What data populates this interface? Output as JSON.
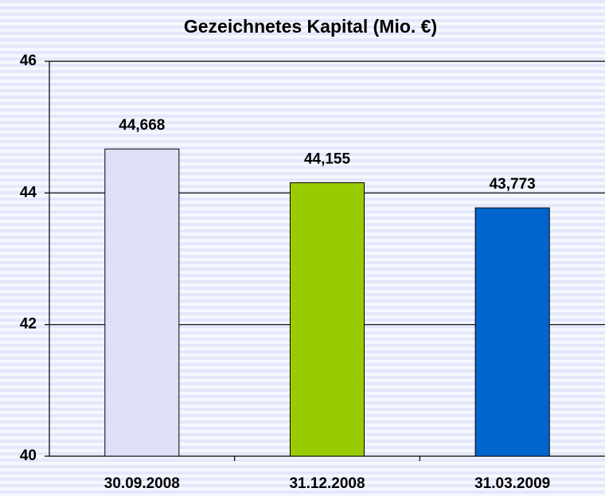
{
  "chart_data": {
    "type": "bar",
    "title": "Gezeichnetes Kapital (Mio. €)",
    "categories": [
      "30.09.2008",
      "31.12.2008",
      "31.03.2009"
    ],
    "values": [
      44.668,
      44.155,
      43.773
    ],
    "value_labels": [
      "44,668",
      "44,155",
      "43,773"
    ],
    "colors": [
      "#dde0f8",
      "#99cc00",
      "#0066cc"
    ],
    "ylim": [
      40,
      46
    ],
    "yticks": [
      40,
      42,
      44,
      46
    ],
    "grid": true
  }
}
